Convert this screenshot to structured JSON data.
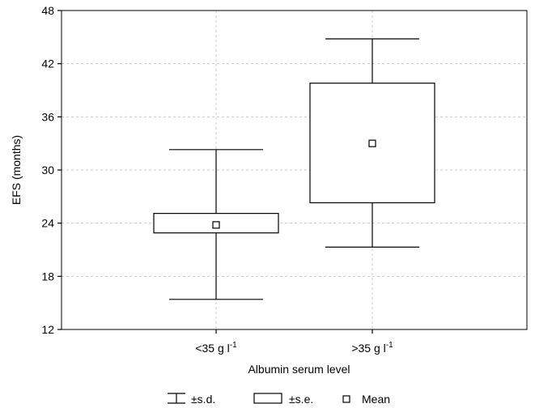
{
  "chart_data": {
    "type": "box",
    "title": "",
    "xlabel": "Albumin serum level",
    "ylabel": "EFS (months)",
    "ylim": [
      12,
      48
    ],
    "yticks": [
      12,
      18,
      24,
      30,
      36,
      42,
      48
    ],
    "grid": true,
    "categories": [
      {
        "base": "<35 g l",
        "sup": "-1"
      },
      {
        "base": ">35 g l",
        "sup": "-1"
      }
    ],
    "series": [
      {
        "category": "<35 g l-1",
        "mean": 23.8,
        "se_low": 22.9,
        "se_high": 25.1,
        "sd_low": 15.4,
        "sd_high": 32.3
      },
      {
        "category": ">35 g l-1",
        "mean": 33.0,
        "se_low": 26.3,
        "se_high": 39.8,
        "sd_low": 21.3,
        "sd_high": 44.8
      }
    ],
    "legend": {
      "placement": "bottom",
      "items": [
        {
          "symbol": "whisker",
          "label": "±s.d."
        },
        {
          "symbol": "box",
          "label": "±s.e."
        },
        {
          "symbol": "square",
          "label": "Mean"
        }
      ]
    }
  }
}
